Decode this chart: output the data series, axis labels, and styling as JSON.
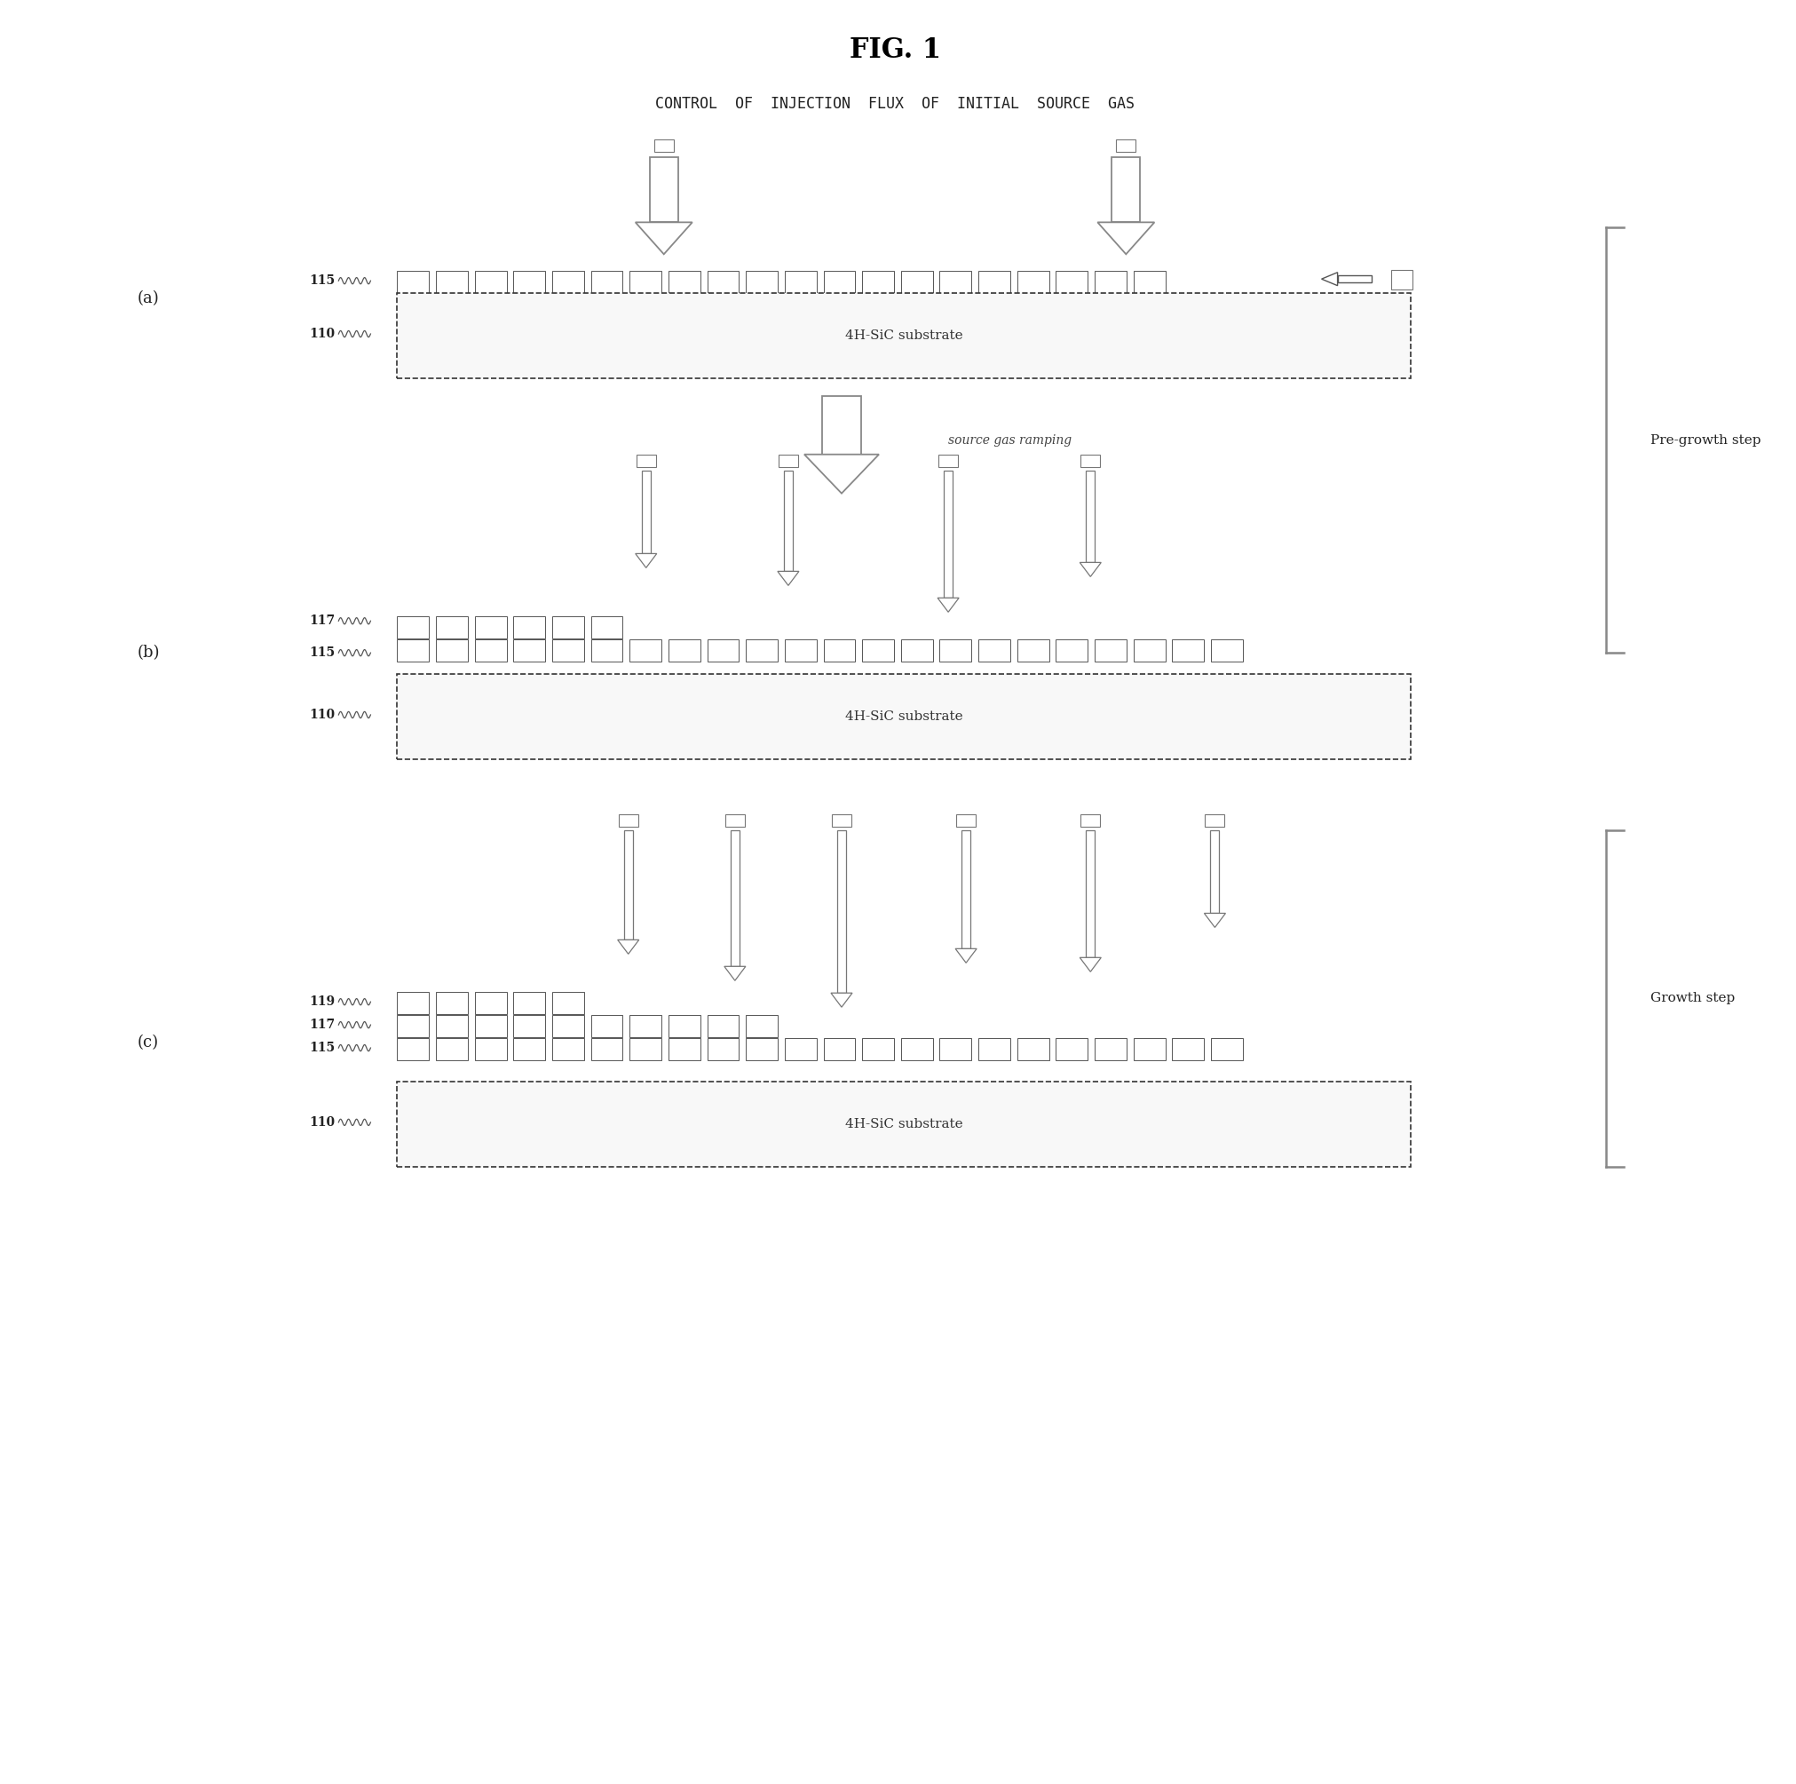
{
  "title": "FIG. 1",
  "subtitle": "CONTROL  OF  INJECTION  FLUX  OF  INITIAL  SOURCE  GAS",
  "bg_color": "#ffffff",
  "substrate_label": "4H-SiC substrate",
  "section_a_label": "(a)",
  "section_b_label": "(b)",
  "section_c_label": "(c)",
  "label_115": "115",
  "label_110": "110",
  "label_117": "117",
  "label_119": "119",
  "pre_growth_label": "Pre-growth step",
  "growth_label": "Growth step",
  "source_gas_ramping": "source gas ramping",
  "line_color": "#555555",
  "substrate_fill": "#f8f8f8"
}
